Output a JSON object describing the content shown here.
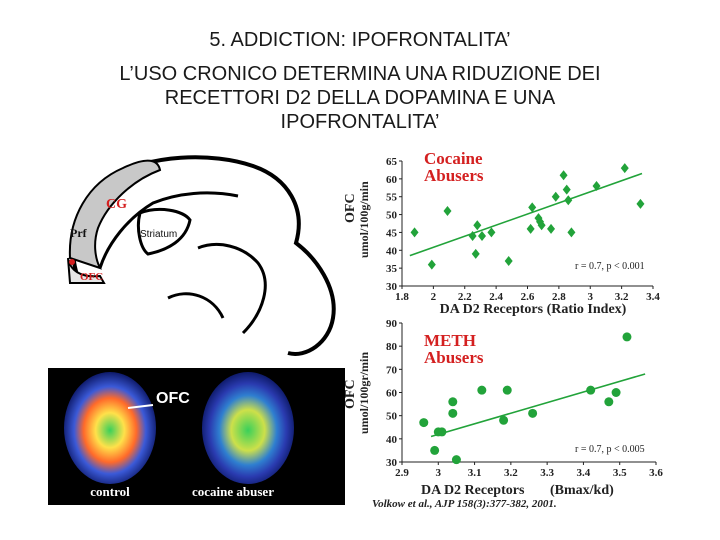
{
  "slide": {
    "title_line1": "5. ADDICTION: IPOFRONTALITA’",
    "title_line2": "L’USO CRONICO DETERMINA UNA RIDUZIONE DEI RECETTORI D2 DELLA DOPAMINA E UNA IPOFRONTALITA’",
    "title_line2_rows": [
      "L’USO CRONICO DETERMINA UNA RIDUZIONE DEI",
      "RECETTORI D2 DELLA DOPAMINA E UNA",
      "IPOFRONTALITA’"
    ]
  },
  "brain_diagram": {
    "labels": {
      "cg": "CG",
      "prf": "Prf",
      "striatum": "Striatum",
      "ofc": "OFC"
    },
    "colors": {
      "cortex_fill": "#c8c8c8",
      "label_red": "#d42020"
    }
  },
  "pet_scans": {
    "ofc_label": "OFC",
    "captions": {
      "control": "control",
      "abuser": "cocaine abuser"
    }
  },
  "citation": "Volkow et al., AJP 158(3):377-382, 2001.",
  "colors": {
    "marker": "#22a33a",
    "title_red": "#d42020",
    "axis": "#222222"
  },
  "chart_data": [
    {
      "type": "scatter",
      "marker": "diamond",
      "title": "Cocaine Abusers",
      "title_lines": [
        "Cocaine",
        "Abusers"
      ],
      "xlabel": "DA D2 Receptors (Ratio Index)",
      "ylabel": "OFC umol/100g/min",
      "ylabel_lines": [
        "OFC",
        "umol/100g/min"
      ],
      "xlim": [
        1.8,
        3.4
      ],
      "ylim": [
        30,
        65
      ],
      "x_ticks": [
        1.8,
        2,
        2.2,
        2.4,
        2.6,
        2.8,
        3,
        3.2,
        3.4
      ],
      "x_tick_labels": [
        "1.8",
        "2",
        "2.2",
        "2.4",
        "2.6",
        "2.8",
        "3",
        "3.2",
        "3.4"
      ],
      "y_ticks": [
        30,
        35,
        40,
        45,
        50,
        55,
        60,
        65
      ],
      "y_tick_labels": [
        "30",
        "35",
        "40",
        "45",
        "50",
        "55",
        "60",
        "65"
      ],
      "annotation": "r = 0.7, p < 0.001",
      "points": [
        {
          "x": 1.88,
          "y": 45
        },
        {
          "x": 1.99,
          "y": 36
        },
        {
          "x": 2.09,
          "y": 51
        },
        {
          "x": 2.25,
          "y": 44
        },
        {
          "x": 2.27,
          "y": 39
        },
        {
          "x": 2.28,
          "y": 47
        },
        {
          "x": 2.31,
          "y": 44
        },
        {
          "x": 2.37,
          "y": 45
        },
        {
          "x": 2.48,
          "y": 37
        },
        {
          "x": 2.62,
          "y": 46
        },
        {
          "x": 2.63,
          "y": 52
        },
        {
          "x": 2.67,
          "y": 49
        },
        {
          "x": 2.68,
          "y": 48
        },
        {
          "x": 2.69,
          "y": 47
        },
        {
          "x": 2.75,
          "y": 46
        },
        {
          "x": 2.78,
          "y": 55
        },
        {
          "x": 2.83,
          "y": 61
        },
        {
          "x": 2.85,
          "y": 57
        },
        {
          "x": 2.86,
          "y": 54
        },
        {
          "x": 2.88,
          "y": 45
        },
        {
          "x": 3.04,
          "y": 58
        },
        {
          "x": 3.22,
          "y": 63
        },
        {
          "x": 3.32,
          "y": 53
        }
      ],
      "trendline": [
        [
          1.85,
          38.5
        ],
        [
          3.33,
          61.5
        ]
      ]
    },
    {
      "type": "scatter",
      "marker": "circle",
      "title": "METH Abusers",
      "title_lines": [
        "METH",
        "Abusers"
      ],
      "xlabel": "DA D2 Receptors (Bmax/kd)",
      "xlabel_parts": [
        "DA D2 Receptors",
        "(Bmax/kd)"
      ],
      "ylabel": "OFC umol/100gr/min",
      "ylabel_lines": [
        "OFC",
        "umol/100gr/min"
      ],
      "xlim": [
        2.9,
        3.6
      ],
      "ylim": [
        30,
        90
      ],
      "x_ticks": [
        2.9,
        3,
        3.1,
        3.2,
        3.3,
        3.4,
        3.5,
        3.6
      ],
      "x_tick_labels": [
        "2.9",
        "3",
        "3.1",
        "3.2",
        "3.3",
        "3.4",
        "3.5",
        "3.6"
      ],
      "y_ticks": [
        30,
        40,
        50,
        60,
        70,
        80,
        90
      ],
      "y_tick_labels": [
        "30",
        "40",
        "50",
        "60",
        "70",
        "80",
        "90"
      ],
      "annotation": "r = 0.7, p < 0.005",
      "points": [
        {
          "x": 2.96,
          "y": 47
        },
        {
          "x": 2.99,
          "y": 35
        },
        {
          "x": 3.0,
          "y": 43
        },
        {
          "x": 3.01,
          "y": 43
        },
        {
          "x": 3.04,
          "y": 56
        },
        {
          "x": 3.04,
          "y": 51
        },
        {
          "x": 3.05,
          "y": 31
        },
        {
          "x": 3.12,
          "y": 61
        },
        {
          "x": 3.18,
          "y": 48
        },
        {
          "x": 3.19,
          "y": 61
        },
        {
          "x": 3.26,
          "y": 51
        },
        {
          "x": 3.42,
          "y": 61
        },
        {
          "x": 3.47,
          "y": 56
        },
        {
          "x": 3.49,
          "y": 60
        },
        {
          "x": 3.52,
          "y": 84
        }
      ],
      "trendline": [
        [
          2.98,
          41
        ],
        [
          3.57,
          68
        ]
      ]
    }
  ]
}
